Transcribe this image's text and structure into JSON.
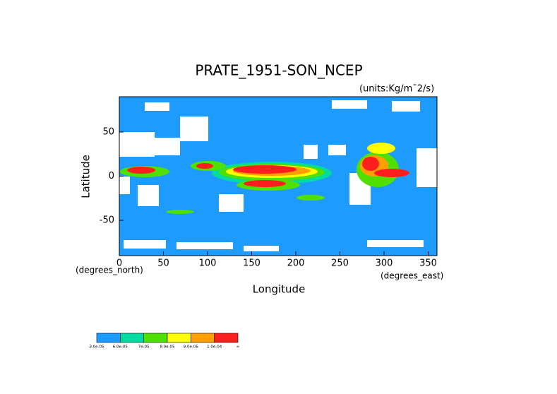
{
  "chart_data": {
    "type": "contour",
    "title": "PRATE_1951-SON_NCEP",
    "subtitle": "(units:Kg/m¯2/s)",
    "xlabel": "Longitude",
    "ylabel": "Latitude",
    "x_unit_label": "(degrees_east)",
    "y_unit_label": "(degrees_north)",
    "xlim": [
      0,
      360
    ],
    "ylim": [
      -90,
      90
    ],
    "xticks": [
      0,
      50,
      100,
      150,
      200,
      250,
      300,
      350
    ],
    "yticks": [
      -50,
      0,
      50
    ],
    "colorbar": {
      "labels": [
        "3.0e-05",
        "6.0e-05",
        "7e-05",
        "8.0e-05",
        "9.0e-05",
        "1.0e-04",
        "∞"
      ],
      "colors": [
        "#1e9bff",
        "#00dca0",
        "#50e000",
        "#ffff00",
        "#ffa000",
        "#ff1e1e"
      ]
    }
  }
}
